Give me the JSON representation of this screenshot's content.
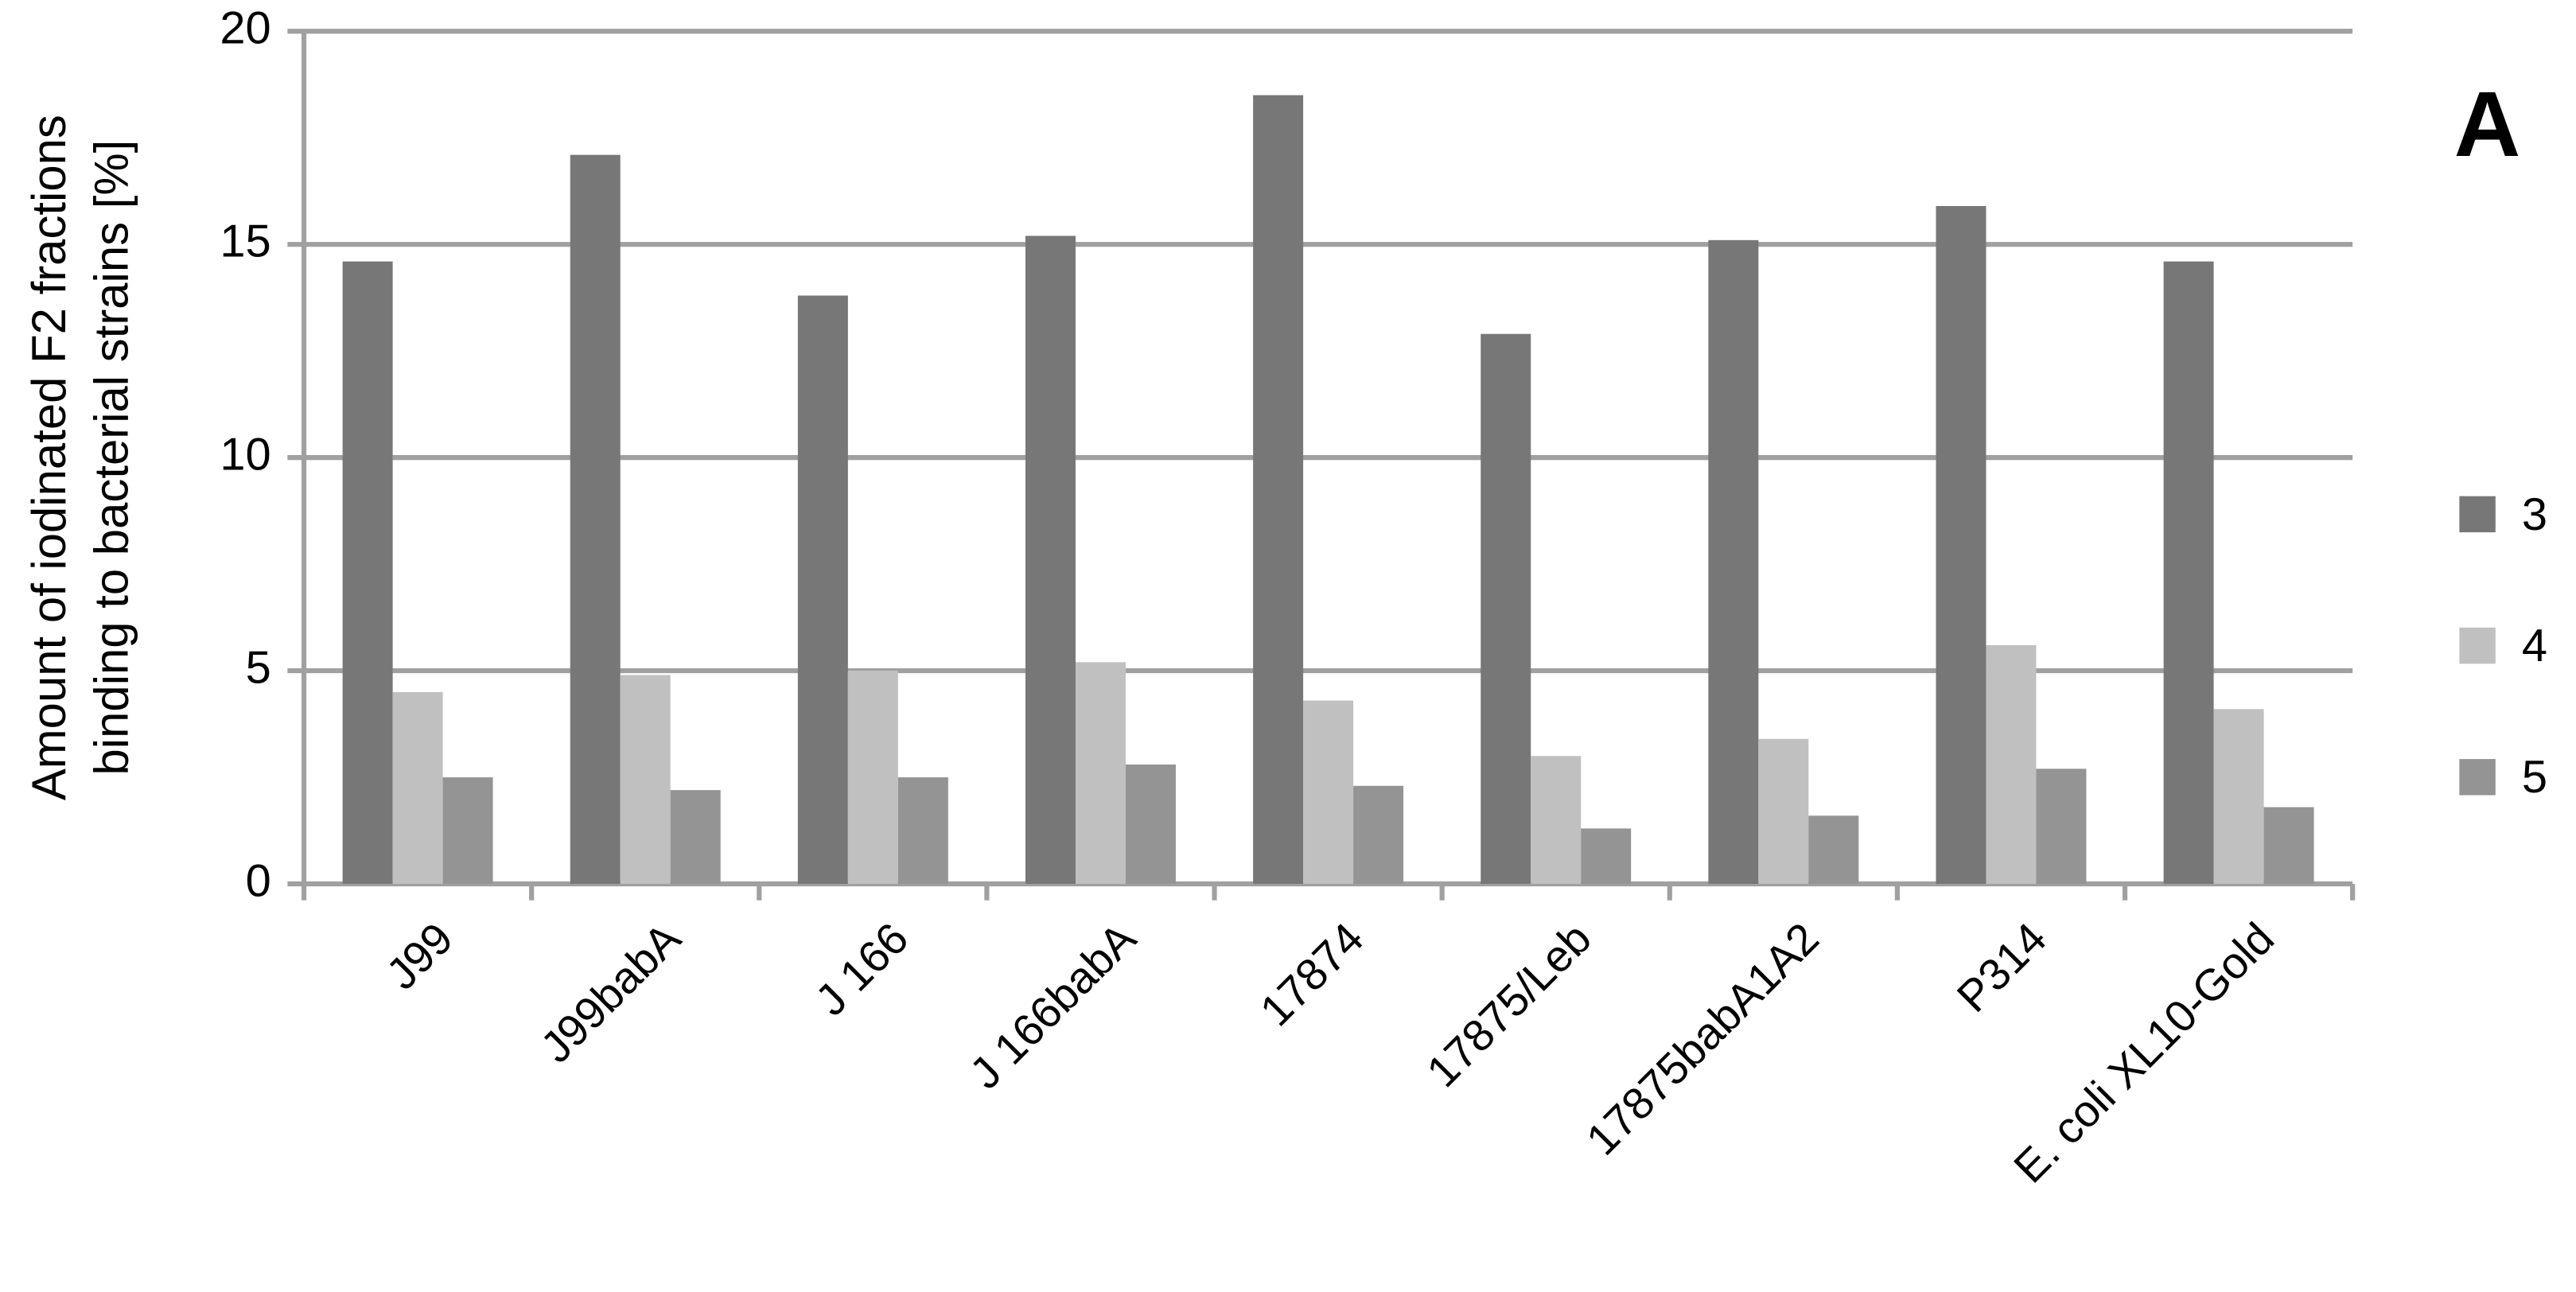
{
  "chart_data": {
    "type": "bar",
    "ylabel_lines": [
      "Amount of iodinated F2 fractions",
      "binding to bacterial strains [%]"
    ],
    "annotation": "A",
    "categories": [
      "J99",
      "J99babA",
      "J 166",
      "J 166babA",
      "17874",
      "17875/Leb",
      "17875babA1A2",
      "P314",
      "E. coli XL10-Gold"
    ],
    "series": [
      {
        "name": "3",
        "color": "#777777",
        "values": [
          14.6,
          17.1,
          13.8,
          15.2,
          18.5,
          12.9,
          15.1,
          15.9,
          14.6
        ]
      },
      {
        "name": "4",
        "color": "#c0c0c0",
        "values": [
          4.5,
          4.9,
          5.0,
          5.2,
          4.3,
          3.0,
          3.4,
          5.6,
          4.1
        ]
      },
      {
        "name": "5",
        "color": "#949494",
        "values": [
          2.5,
          2.2,
          2.5,
          2.8,
          2.3,
          1.3,
          1.6,
          2.7,
          1.8
        ]
      }
    ],
    "ylim": [
      0,
      20
    ],
    "yticks": [
      0,
      5,
      10,
      15,
      20
    ],
    "grid": true,
    "legend": "right"
  }
}
